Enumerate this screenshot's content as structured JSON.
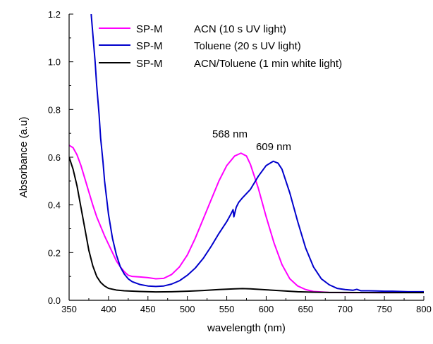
{
  "chart_data": {
    "type": "line",
    "xlabel": "wavelength (nm)",
    "ylabel": "Absorbance (a.u)",
    "xlim": [
      350,
      800
    ],
    "ylim": [
      0.0,
      1.2
    ],
    "x_ticks": [
      350,
      400,
      450,
      500,
      550,
      600,
      650,
      700,
      750,
      800
    ],
    "y_ticks": [
      0.0,
      0.2,
      0.4,
      0.6,
      0.8,
      1.0,
      1.2
    ],
    "x_tick_labels": [
      "350",
      "400",
      "450",
      "500",
      "550",
      "600",
      "650",
      "700",
      "750",
      "800"
    ],
    "y_tick_labels": [
      "0.0",
      "0.2",
      "0.4",
      "0.6",
      "0.8",
      "1.0",
      "1.2"
    ],
    "grid": false,
    "legend_position": "top-left",
    "series": [
      {
        "name": "SP-M",
        "condition": "ACN (10 s UV light)",
        "color": "#ff00ff",
        "points": [
          [
            350,
            0.65
          ],
          [
            355,
            0.64
          ],
          [
            360,
            0.61
          ],
          [
            365,
            0.565
          ],
          [
            370,
            0.51
          ],
          [
            375,
            0.455
          ],
          [
            380,
            0.4
          ],
          [
            385,
            0.35
          ],
          [
            390,
            0.31
          ],
          [
            395,
            0.27
          ],
          [
            400,
            0.235
          ],
          [
            405,
            0.2
          ],
          [
            410,
            0.165
          ],
          [
            415,
            0.14
          ],
          [
            420,
            0.12
          ],
          [
            425,
            0.105
          ],
          [
            430,
            0.1
          ],
          [
            440,
            0.098
          ],
          [
            450,
            0.095
          ],
          [
            460,
            0.09
          ],
          [
            470,
            0.092
          ],
          [
            480,
            0.108
          ],
          [
            490,
            0.14
          ],
          [
            500,
            0.19
          ],
          [
            510,
            0.26
          ],
          [
            520,
            0.34
          ],
          [
            530,
            0.42
          ],
          [
            540,
            0.5
          ],
          [
            550,
            0.565
          ],
          [
            560,
            0.605
          ],
          [
            568,
            0.617
          ],
          [
            575,
            0.605
          ],
          [
            580,
            0.57
          ],
          [
            590,
            0.47
          ],
          [
            600,
            0.35
          ],
          [
            610,
            0.24
          ],
          [
            620,
            0.15
          ],
          [
            630,
            0.09
          ],
          [
            640,
            0.06
          ],
          [
            650,
            0.045
          ],
          [
            660,
            0.037
          ],
          [
            680,
            0.033
          ],
          [
            700,
            0.032
          ],
          [
            750,
            0.032
          ],
          [
            800,
            0.033
          ]
        ]
      },
      {
        "name": "SP-M",
        "condition": "Toluene (20 s UV light)",
        "color": "#0000cc",
        "points": [
          [
            378,
            1.2
          ],
          [
            380,
            1.12
          ],
          [
            383,
            1.0
          ],
          [
            385,
            0.9
          ],
          [
            388,
            0.78
          ],
          [
            390,
            0.68
          ],
          [
            393,
            0.58
          ],
          [
            395,
            0.5
          ],
          [
            400,
            0.36
          ],
          [
            405,
            0.26
          ],
          [
            410,
            0.19
          ],
          [
            415,
            0.14
          ],
          [
            420,
            0.11
          ],
          [
            425,
            0.09
          ],
          [
            430,
            0.078
          ],
          [
            440,
            0.066
          ],
          [
            450,
            0.06
          ],
          [
            460,
            0.058
          ],
          [
            470,
            0.06
          ],
          [
            480,
            0.068
          ],
          [
            490,
            0.082
          ],
          [
            500,
            0.105
          ],
          [
            510,
            0.135
          ],
          [
            520,
            0.175
          ],
          [
            530,
            0.225
          ],
          [
            540,
            0.28
          ],
          [
            550,
            0.33
          ],
          [
            555,
            0.36
          ],
          [
            558,
            0.38
          ],
          [
            559,
            0.35
          ],
          [
            562,
            0.39
          ],
          [
            565,
            0.41
          ],
          [
            570,
            0.43
          ],
          [
            580,
            0.465
          ],
          [
            590,
            0.52
          ],
          [
            600,
            0.565
          ],
          [
            609,
            0.583
          ],
          [
            615,
            0.575
          ],
          [
            620,
            0.55
          ],
          [
            630,
            0.45
          ],
          [
            640,
            0.33
          ],
          [
            650,
            0.22
          ],
          [
            660,
            0.14
          ],
          [
            670,
            0.09
          ],
          [
            680,
            0.065
          ],
          [
            690,
            0.05
          ],
          [
            700,
            0.045
          ],
          [
            710,
            0.042
          ],
          [
            715,
            0.046
          ],
          [
            720,
            0.04
          ],
          [
            730,
            0.04
          ],
          [
            740,
            0.039
          ],
          [
            750,
            0.038
          ],
          [
            760,
            0.038
          ],
          [
            770,
            0.037
          ],
          [
            780,
            0.036
          ],
          [
            790,
            0.036
          ],
          [
            800,
            0.036
          ]
        ]
      },
      {
        "name": "SP-M",
        "condition": "ACN/Toluene (1 min white light)",
        "color": "#000000",
        "points": [
          [
            350,
            0.6
          ],
          [
            355,
            0.55
          ],
          [
            360,
            0.48
          ],
          [
            365,
            0.39
          ],
          [
            370,
            0.3
          ],
          [
            375,
            0.21
          ],
          [
            380,
            0.145
          ],
          [
            385,
            0.1
          ],
          [
            390,
            0.075
          ],
          [
            395,
            0.06
          ],
          [
            400,
            0.05
          ],
          [
            410,
            0.043
          ],
          [
            420,
            0.04
          ],
          [
            440,
            0.037
          ],
          [
            460,
            0.035
          ],
          [
            480,
            0.036
          ],
          [
            500,
            0.038
          ],
          [
            520,
            0.041
          ],
          [
            540,
            0.045
          ],
          [
            560,
            0.048
          ],
          [
            570,
            0.049
          ],
          [
            580,
            0.048
          ],
          [
            600,
            0.044
          ],
          [
            620,
            0.04
          ],
          [
            640,
            0.036
          ],
          [
            660,
            0.034
          ],
          [
            680,
            0.033
          ],
          [
            700,
            0.033
          ],
          [
            750,
            0.032
          ],
          [
            800,
            0.032
          ]
        ]
      }
    ],
    "annotations": [
      {
        "text": "568 nm",
        "x": 568,
        "y": 0.617
      },
      {
        "text": "609 nm",
        "x": 609,
        "y": 0.583
      }
    ]
  }
}
